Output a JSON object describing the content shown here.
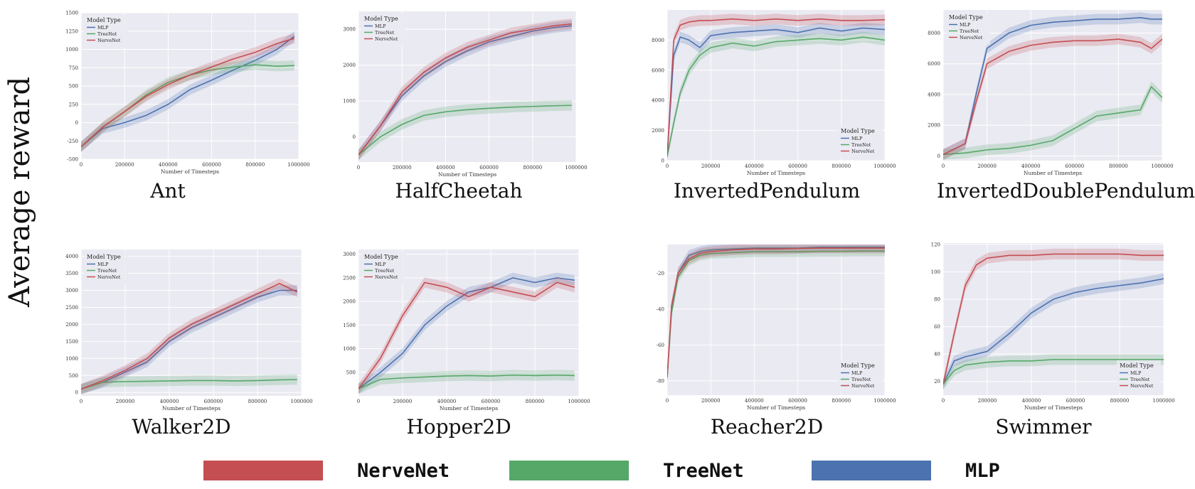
{
  "figure": {
    "ylabel": "Average reward",
    "legend": [
      {
        "name": "NerveNet",
        "color": "#c44e52"
      },
      {
        "name": "TreeNet",
        "color": "#55a868"
      },
      {
        "name": "MLP",
        "color": "#4c72b0"
      }
    ]
  },
  "chart_data": [
    {
      "type": "line",
      "env_name": "Ant",
      "legend_title": "Model Type",
      "legend_position": "top-left",
      "xlabel": "Number of Timesteps",
      "xlim": [
        0,
        1000000
      ],
      "ylim": [
        -500,
        1500
      ],
      "xticks": [
        0,
        200000,
        400000,
        600000,
        800000,
        1000000
      ],
      "yticks": [
        -500,
        -250,
        0,
        250,
        500,
        750,
        1000,
        1250,
        1500
      ],
      "grid": true,
      "x": [
        0,
        100000,
        200000,
        300000,
        400000,
        500000,
        600000,
        700000,
        800000,
        900000,
        980000
      ],
      "series": [
        {
          "name": "MLP",
          "color": "#4c72b0",
          "values": [
            -330,
            -80,
            0,
            100,
            250,
            450,
            580,
            720,
            850,
            1000,
            1180
          ]
        },
        {
          "name": "TreeNet",
          "color": "#55a868",
          "values": [
            -330,
            -60,
            150,
            380,
            550,
            650,
            720,
            760,
            790,
            770,
            780
          ]
        },
        {
          "name": "NerveNet",
          "color": "#c44e52",
          "values": [
            -330,
            -60,
            150,
            360,
            520,
            650,
            760,
            870,
            960,
            1080,
            1150
          ]
        }
      ]
    },
    {
      "type": "line",
      "env_name": "HalfCheetah",
      "legend_title": "Model Type",
      "legend_position": "top-left",
      "xlabel": "Number of Timesteps",
      "xlim": [
        0,
        1000000
      ],
      "ylim": [
        -700,
        3500
      ],
      "xticks": [
        0,
        200000,
        400000,
        600000,
        800000,
        1000000
      ],
      "yticks": [
        0,
        1000,
        2000,
        3000
      ],
      "grid": true,
      "x": [
        0,
        100000,
        200000,
        300000,
        400000,
        500000,
        600000,
        700000,
        800000,
        900000,
        980000
      ],
      "series": [
        {
          "name": "MLP",
          "color": "#4c72b0",
          "values": [
            -500,
            300,
            1150,
            1700,
            2100,
            2400,
            2650,
            2800,
            2950,
            3050,
            3100
          ]
        },
        {
          "name": "TreeNet",
          "color": "#55a868",
          "values": [
            -500,
            0,
            350,
            600,
            700,
            760,
            800,
            830,
            850,
            870,
            880
          ]
        },
        {
          "name": "NerveNet",
          "color": "#c44e52",
          "values": [
            -500,
            300,
            1250,
            1800,
            2200,
            2500,
            2700,
            2900,
            3000,
            3100,
            3150
          ]
        }
      ]
    },
    {
      "type": "line",
      "env_name": "InvertedPendulum",
      "legend_title": "Model Type",
      "legend_position": "bottom-right",
      "xlabel": "Number of Timesteps",
      "xlim": [
        0,
        1000000
      ],
      "ylim": [
        0,
        10000
      ],
      "xticks": [
        0,
        200000,
        400000,
        600000,
        800000,
        1000000
      ],
      "yticks": [
        0,
        2000,
        4000,
        6000,
        8000
      ],
      "grid": true,
      "x": [
        0,
        30000,
        60000,
        100000,
        150000,
        200000,
        300000,
        400000,
        500000,
        600000,
        700000,
        800000,
        900000,
        1000000
      ],
      "series": [
        {
          "name": "MLP",
          "color": "#4c72b0",
          "values": [
            300,
            7000,
            8200,
            8000,
            7500,
            8300,
            8500,
            8600,
            8700,
            8500,
            8800,
            8600,
            8800,
            8700
          ]
        },
        {
          "name": "TreeNet",
          "color": "#55a868",
          "values": [
            300,
            2500,
            4500,
            6000,
            7000,
            7500,
            7800,
            7600,
            7900,
            8000,
            8100,
            8000,
            8200,
            8000
          ]
        },
        {
          "name": "NerveNet",
          "color": "#c44e52",
          "values": [
            300,
            8000,
            9000,
            9200,
            9300,
            9300,
            9400,
            9300,
            9400,
            9300,
            9400,
            9300,
            9300,
            9350
          ]
        }
      ]
    },
    {
      "type": "line",
      "env_name": "InvertedDoublePendulum",
      "legend_title": "Model Type",
      "legend_position": "top-left",
      "xlabel": "Number of Timesteps",
      "xlim": [
        0,
        1000000
      ],
      "ylim": [
        -300,
        9500
      ],
      "xticks": [
        0,
        200000,
        400000,
        600000,
        800000,
        1000000
      ],
      "yticks": [
        0,
        2000,
        4000,
        6000,
        8000
      ],
      "grid": true,
      "x": [
        0,
        100000,
        150000,
        200000,
        300000,
        400000,
        500000,
        600000,
        700000,
        800000,
        900000,
        950000,
        1000000
      ],
      "series": [
        {
          "name": "MLP",
          "color": "#4c72b0",
          "values": [
            100,
            800,
            4000,
            7000,
            8000,
            8500,
            8700,
            8800,
            8900,
            8900,
            9000,
            8900,
            8900
          ]
        },
        {
          "name": "TreeNet",
          "color": "#55a868",
          "values": [
            100,
            200,
            300,
            400,
            500,
            700,
            1000,
            1800,
            2600,
            2800,
            3000,
            4500,
            3800
          ]
        },
        {
          "name": "NerveNet",
          "color": "#c44e52",
          "values": [
            100,
            800,
            3500,
            6000,
            6800,
            7200,
            7400,
            7500,
            7500,
            7600,
            7400,
            7000,
            7600
          ]
        }
      ]
    },
    {
      "type": "line",
      "env_name": "Walker2D",
      "legend_title": "Model Type",
      "legend_position": "top-left",
      "xlabel": "Number of Timesteps",
      "xlim": [
        0,
        1000000
      ],
      "ylim": [
        -100,
        4200
      ],
      "xticks": [
        0,
        200000,
        400000,
        600000,
        800000,
        1000000
      ],
      "yticks": [
        0,
        500,
        1000,
        1500,
        2000,
        2500,
        3000,
        3500,
        4000
      ],
      "grid": true,
      "x": [
        0,
        100000,
        200000,
        300000,
        400000,
        500000,
        600000,
        700000,
        800000,
        900000,
        980000
      ],
      "series": [
        {
          "name": "MLP",
          "color": "#4c72b0",
          "values": [
            100,
            300,
            600,
            900,
            1500,
            1900,
            2200,
            2500,
            2800,
            3000,
            3000
          ]
        },
        {
          "name": "TreeNet",
          "color": "#55a868",
          "values": [
            100,
            300,
            320,
            330,
            340,
            350,
            350,
            340,
            350,
            370,
            380
          ]
        },
        {
          "name": "NerveNet",
          "color": "#c44e52",
          "values": [
            100,
            350,
            650,
            1000,
            1600,
            2000,
            2300,
            2600,
            2900,
            3200,
            2950
          ]
        }
      ]
    },
    {
      "type": "line",
      "env_name": "Hopper2D",
      "legend_title": "Model Type",
      "legend_position": "top-left",
      "xlabel": "Number of Timesteps",
      "xlim": [
        0,
        1000000
      ],
      "ylim": [
        0,
        3100
      ],
      "xticks": [
        0,
        200000,
        400000,
        600000,
        800000,
        1000000
      ],
      "yticks": [
        500,
        1000,
        1500,
        2000,
        2500,
        3000
      ],
      "grid": true,
      "x": [
        0,
        100000,
        200000,
        300000,
        400000,
        500000,
        600000,
        700000,
        800000,
        900000,
        980000
      ],
      "series": [
        {
          "name": "MLP",
          "color": "#4c72b0",
          "values": [
            150,
            500,
            900,
            1500,
            1900,
            2200,
            2300,
            2500,
            2400,
            2500,
            2450
          ]
        },
        {
          "name": "TreeNet",
          "color": "#55a868",
          "values": [
            150,
            350,
            380,
            400,
            420,
            430,
            420,
            440,
            430,
            440,
            430
          ]
        },
        {
          "name": "NerveNet",
          "color": "#c44e52",
          "values": [
            150,
            800,
            1700,
            2400,
            2300,
            2100,
            2300,
            2200,
            2100,
            2400,
            2300
          ]
        }
      ]
    },
    {
      "type": "line",
      "env_name": "Reacher2D",
      "legend_title": "Model Type",
      "legend_position": "bottom-right",
      "xlabel": "Number of Timesteps",
      "xlim": [
        0,
        1000000
      ],
      "ylim": [
        -88,
        -4
      ],
      "xticks": [
        0,
        200000,
        400000,
        600000,
        800000,
        1000000
      ],
      "yticks": [
        -80,
        -60,
        -40,
        -20
      ],
      "grid": true,
      "x": [
        0,
        20000,
        50000,
        100000,
        150000,
        200000,
        300000,
        400000,
        500000,
        600000,
        700000,
        800000,
        900000,
        1000000
      ],
      "series": [
        {
          "name": "MLP",
          "color": "#4c72b0",
          "values": [
            -78,
            -40,
            -20,
            -10,
            -8,
            -7,
            -6.5,
            -6,
            -6,
            -6,
            -5.5,
            -5.5,
            -5.5,
            -5.5
          ]
        },
        {
          "name": "TreeNet",
          "color": "#55a868",
          "values": [
            -78,
            -42,
            -22,
            -13,
            -10,
            -9,
            -8.5,
            -8,
            -8,
            -8,
            -7.8,
            -7.8,
            -7.6,
            -7.6
          ]
        },
        {
          "name": "NerveNet",
          "color": "#c44e52",
          "values": [
            -78,
            -38,
            -20,
            -12,
            -9,
            -8,
            -7,
            -6.5,
            -6.5,
            -6.2,
            -6,
            -6,
            -6,
            -6
          ]
        }
      ]
    },
    {
      "type": "line",
      "env_name": "Swimmer",
      "legend_title": "Model Type",
      "legend_position": "bottom-right",
      "xlabel": "Number of Timesteps",
      "xlim": [
        0,
        1000000
      ],
      "ylim": [
        10,
        121
      ],
      "xticks": [
        0,
        200000,
        400000,
        600000,
        800000,
        1000000
      ],
      "yticks": [
        20,
        40,
        60,
        80,
        100,
        120
      ],
      "grid": true,
      "x": [
        0,
        50000,
        100000,
        150000,
        200000,
        300000,
        400000,
        500000,
        600000,
        700000,
        800000,
        900000,
        1000000
      ],
      "series": [
        {
          "name": "MLP",
          "color": "#4c72b0",
          "values": [
            18,
            35,
            38,
            40,
            42,
            55,
            70,
            80,
            85,
            88,
            90,
            92,
            95
          ]
        },
        {
          "name": "TreeNet",
          "color": "#55a868",
          "values": [
            18,
            28,
            32,
            33,
            34,
            35,
            35,
            36,
            36,
            36,
            36,
            36,
            36
          ]
        },
        {
          "name": "NerveNet",
          "color": "#c44e52",
          "values": [
            18,
            55,
            90,
            105,
            110,
            112,
            112,
            113,
            113,
            113,
            113,
            112,
            112
          ]
        }
      ]
    }
  ]
}
